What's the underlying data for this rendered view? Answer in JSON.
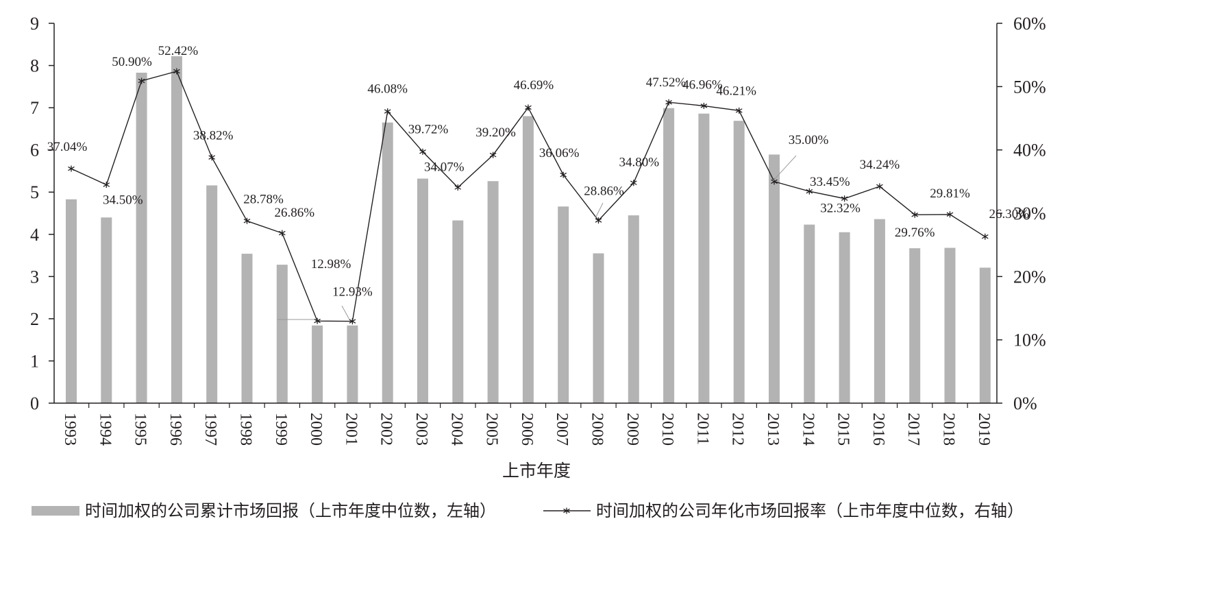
{
  "chart_data": {
    "type": "bar+line",
    "xlabel": "上市年度",
    "categories": [
      "1993",
      "1994",
      "1995",
      "1996",
      "1997",
      "1998",
      "1999",
      "2000",
      "2001",
      "2002",
      "2003",
      "2004",
      "2005",
      "2006",
      "2007",
      "2008",
      "2009",
      "2010",
      "2011",
      "2012",
      "2013",
      "2014",
      "2015",
      "2016",
      "2017",
      "2018",
      "2019"
    ],
    "left_axis": {
      "min": 0,
      "max": 9,
      "ticks": [
        "0",
        "1",
        "2",
        "3",
        "4",
        "5",
        "6",
        "7",
        "8",
        "9"
      ]
    },
    "right_axis": {
      "min": 0,
      "max": 60,
      "ticks": [
        "0%",
        "10%",
        "20%",
        "30%",
        "40%",
        "50%",
        "60%"
      ]
    },
    "series": [
      {
        "name": "时间加权的公司累计市场回报（上市年度中位数，左轴）",
        "type": "bar",
        "axis": "left",
        "color": "#b3b3b3",
        "values": [
          4.83,
          4.4,
          7.83,
          8.22,
          5.16,
          3.54,
          3.28,
          1.84,
          1.84,
          6.65,
          5.32,
          4.33,
          5.26,
          6.8,
          4.66,
          3.55,
          4.45,
          6.99,
          6.86,
          6.69,
          5.89,
          4.23,
          4.05,
          4.36,
          3.67,
          3.68,
          3.21
        ]
      },
      {
        "name": "时间加权的公司年化市场回报率（上市年度中位数，右轴）",
        "type": "line",
        "axis": "right",
        "color": "#231f20",
        "values": [
          37.04,
          34.5,
          50.9,
          52.42,
          38.82,
          28.78,
          26.86,
          12.98,
          12.93,
          46.08,
          39.72,
          34.07,
          39.2,
          46.69,
          36.06,
          28.86,
          34.8,
          47.52,
          46.96,
          46.21,
          35.0,
          33.45,
          32.32,
          34.24,
          29.76,
          29.81,
          26.3
        ],
        "labels": [
          "37.04%",
          "34.50%",
          "50.90%",
          "52.42%",
          "38.82%",
          "28.78%",
          "26.86%",
          "12.98%",
          "12.93%",
          "46.08%",
          "39.72%",
          "34.07%",
          "39.20%",
          "46.69%",
          "36.06%",
          "28.86%",
          "34.80%",
          "47.52%",
          "46.96%",
          "46.21%",
          "35.00%",
          "33.45%",
          "32.32%",
          "34.24%",
          "29.76%",
          "29.81%",
          "26.30%"
        ]
      }
    ],
    "legend_position": "bottom"
  }
}
